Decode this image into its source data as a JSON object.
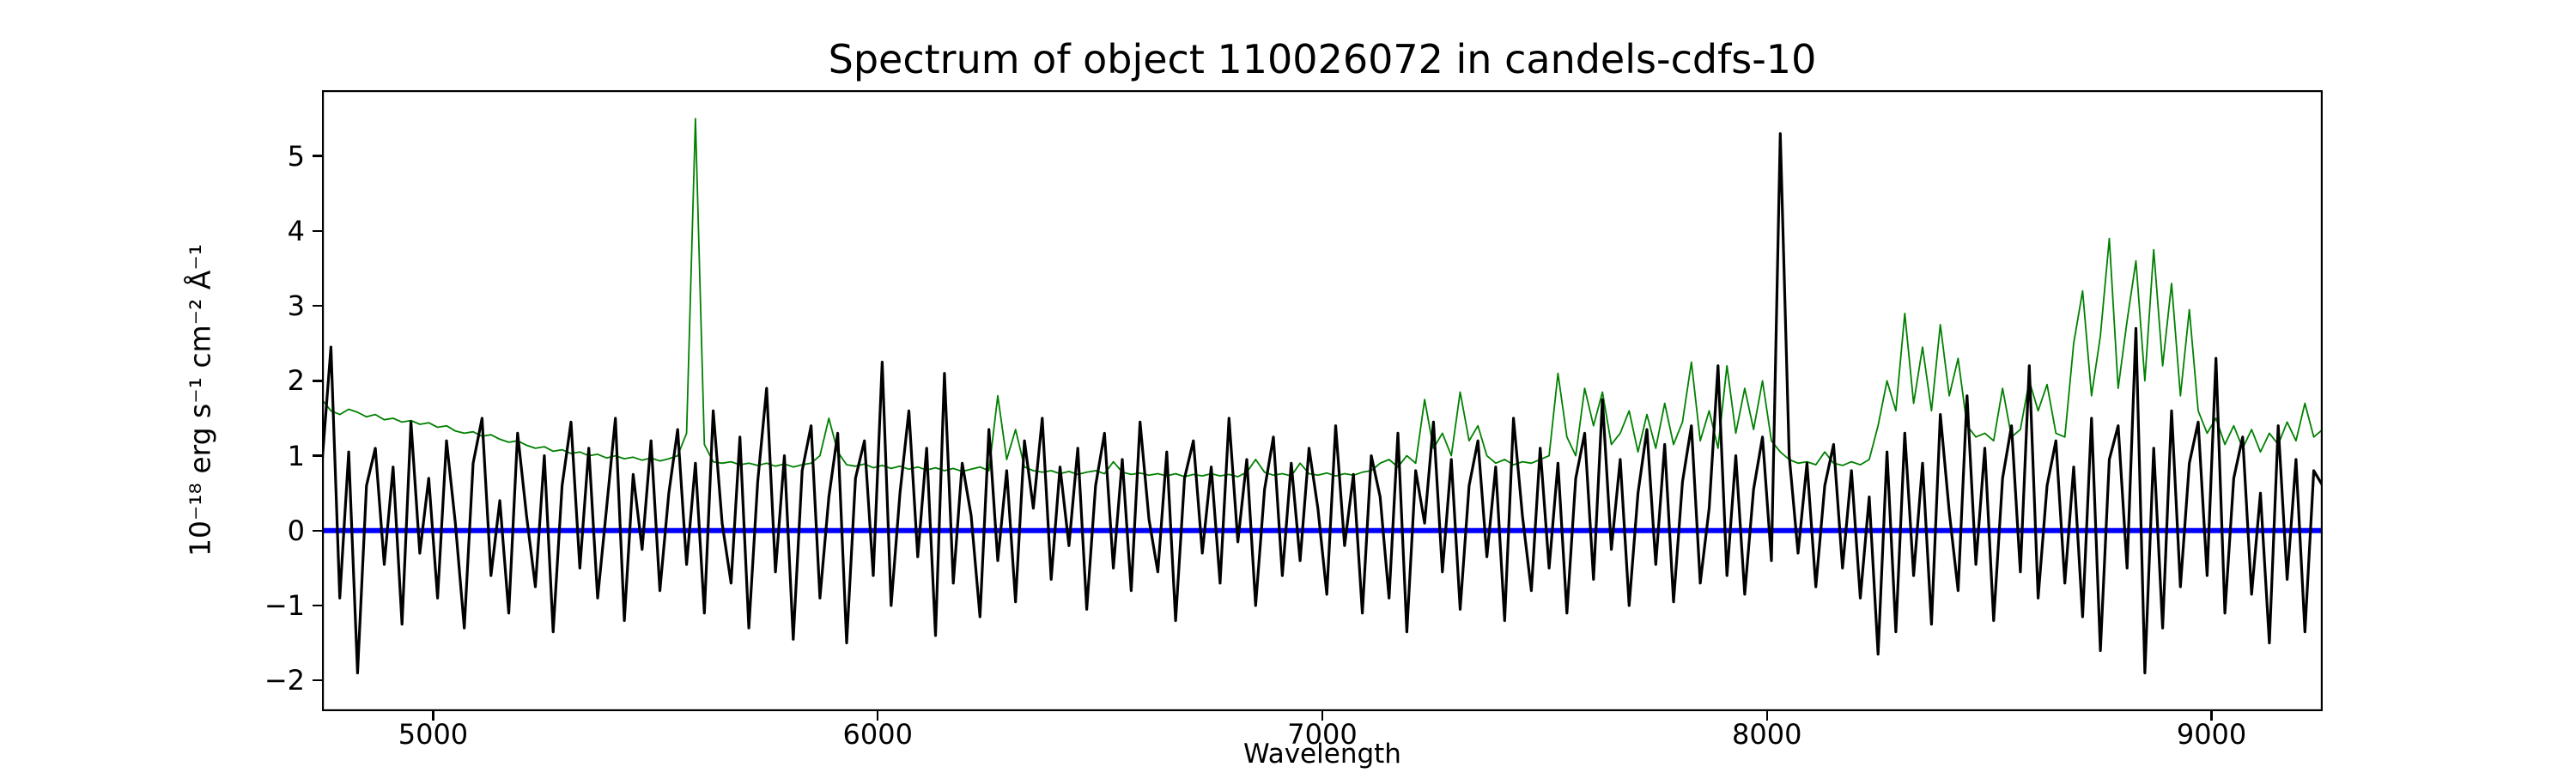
{
  "chart_data": {
    "type": "line",
    "title": "Spectrum of object 110026072 in candels-cdfs-10",
    "xlabel": "Wavelength",
    "ylabel": "10⁻¹⁸ erg s⁻¹ cm⁻² Å⁻¹",
    "xlim": [
      4750,
      9250
    ],
    "ylim": [
      -2.41,
      5.88
    ],
    "xticks": [
      5000,
      6000,
      7000,
      8000,
      9000
    ],
    "yticks": [
      -2,
      -1,
      0,
      1,
      2,
      3,
      4,
      5
    ],
    "grid": false,
    "legend": "none",
    "background": "#ffffff",
    "x_start": 4750,
    "x_step": 20,
    "series": [
      {
        "name": "object flux spectrum",
        "color": "#000000",
        "linewidth": 3.2,
        "values": [
          0.9,
          2.45,
          -0.9,
          1.05,
          -1.9,
          0.6,
          1.1,
          -0.45,
          0.85,
          -1.25,
          1.45,
          -0.3,
          0.7,
          -0.9,
          1.2,
          0.1,
          -1.3,
          0.9,
          1.5,
          -0.6,
          0.4,
          -1.1,
          1.3,
          0.2,
          -0.75,
          1.0,
          -1.35,
          0.6,
          1.45,
          -0.5,
          1.1,
          -0.9,
          0.3,
          1.5,
          -1.2,
          0.75,
          -0.25,
          1.2,
          -0.8,
          0.5,
          1.35,
          -0.45,
          0.9,
          -1.1,
          1.6,
          0.1,
          -0.7,
          1.25,
          -1.3,
          0.65,
          1.9,
          -0.55,
          1.0,
          -1.45,
          0.8,
          1.4,
          -0.9,
          0.45,
          1.3,
          -1.5,
          0.7,
          1.2,
          -0.6,
          2.25,
          -1.0,
          0.5,
          1.6,
          -0.35,
          1.1,
          -1.4,
          2.1,
          -0.7,
          0.9,
          0.2,
          -1.15,
          1.35,
          -0.4,
          0.8,
          -0.95,
          1.2,
          0.3,
          1.5,
          -0.65,
          0.85,
          -0.2,
          1.1,
          -1.05,
          0.6,
          1.3,
          -0.5,
          0.95,
          -0.8,
          1.45,
          0.15,
          -0.55,
          1.05,
          -1.2,
          0.7,
          1.2,
          -0.3,
          0.85,
          -0.7,
          1.5,
          -0.15,
          0.95,
          -1.0,
          0.55,
          1.25,
          -0.6,
          0.9,
          -0.4,
          1.1,
          0.3,
          -0.85,
          1.4,
          -0.2,
          0.75,
          -1.1,
          1.0,
          0.45,
          -0.9,
          1.3,
          -1.35,
          0.8,
          0.1,
          1.45,
          -0.55,
          0.95,
          -1.05,
          0.6,
          1.2,
          -0.35,
          0.85,
          -1.2,
          1.5,
          0.2,
          -0.8,
          1.1,
          -0.5,
          0.9,
          -1.1,
          0.7,
          1.3,
          -0.65,
          1.75,
          -0.25,
          0.95,
          -1.0,
          0.5,
          1.35,
          -0.45,
          1.15,
          -0.95,
          0.65,
          1.4,
          -0.7,
          0.3,
          2.2,
          -0.6,
          1.0,
          -0.85,
          0.55,
          1.25,
          -0.4,
          5.3,
          1.0,
          -0.3,
          0.9,
          -0.75,
          0.6,
          1.15,
          -0.5,
          0.8,
          -0.9,
          0.45,
          -1.65,
          1.05,
          -1.35,
          1.3,
          -0.6,
          0.9,
          -1.25,
          1.55,
          0.25,
          -0.8,
          1.8,
          -0.45,
          1.1,
          -1.2,
          0.7,
          1.4,
          -0.55,
          2.2,
          -0.9,
          0.6,
          1.2,
          -0.7,
          0.85,
          -1.15,
          1.5,
          -1.6,
          0.95,
          1.4,
          -0.5,
          2.7,
          -1.9,
          1.1,
          -1.3,
          1.6,
          -0.75,
          0.9,
          1.45,
          -0.6,
          2.3,
          -1.1,
          0.7,
          1.25,
          -0.85,
          0.5,
          -1.5,
          1.4,
          -0.65,
          0.95,
          -1.35,
          0.8,
          0.6
        ]
      },
      {
        "name": "noise / sky spectrum",
        "color": "#008000",
        "linewidth": 1.8,
        "values": [
          1.75,
          1.6,
          1.55,
          1.62,
          1.58,
          1.52,
          1.55,
          1.48,
          1.5,
          1.45,
          1.47,
          1.42,
          1.44,
          1.38,
          1.4,
          1.33,
          1.3,
          1.32,
          1.26,
          1.28,
          1.22,
          1.18,
          1.2,
          1.14,
          1.1,
          1.12,
          1.06,
          1.08,
          1.03,
          1.05,
          1.0,
          1.02,
          0.97,
          1.0,
          0.96,
          0.98,
          0.94,
          0.97,
          0.93,
          0.96,
          1.0,
          1.3,
          5.5,
          1.15,
          0.92,
          0.9,
          0.92,
          0.88,
          0.9,
          0.87,
          0.9,
          0.86,
          0.89,
          0.85,
          0.88,
          0.9,
          1.0,
          1.5,
          1.05,
          0.88,
          0.86,
          0.89,
          0.84,
          0.87,
          0.83,
          0.86,
          0.82,
          0.85,
          0.81,
          0.84,
          0.8,
          0.83,
          0.79,
          0.82,
          0.85,
          0.8,
          1.8,
          0.95,
          1.35,
          0.85,
          0.8,
          0.78,
          0.8,
          0.76,
          0.79,
          0.75,
          0.78,
          0.8,
          0.76,
          0.92,
          0.78,
          0.75,
          0.77,
          0.74,
          0.76,
          0.73,
          0.76,
          0.72,
          0.75,
          0.73,
          0.76,
          0.73,
          0.75,
          0.72,
          0.78,
          0.95,
          0.78,
          0.74,
          0.76,
          0.73,
          0.9,
          0.76,
          0.74,
          0.77,
          0.73,
          0.76,
          0.74,
          0.78,
          0.8,
          0.9,
          0.95,
          0.85,
          1.0,
          0.9,
          1.75,
          1.1,
          1.3,
          1.0,
          1.85,
          1.2,
          1.4,
          1.0,
          0.9,
          0.95,
          0.88,
          0.92,
          0.9,
          0.95,
          1.0,
          2.1,
          1.25,
          1.0,
          1.9,
          1.4,
          1.85,
          1.15,
          1.3,
          1.6,
          1.05,
          1.55,
          1.1,
          1.7,
          1.15,
          1.45,
          2.25,
          1.2,
          1.6,
          1.1,
          2.2,
          1.3,
          1.9,
          1.35,
          2.0,
          1.2,
          1.05,
          0.95,
          0.9,
          0.92,
          0.88,
          1.05,
          0.9,
          0.87,
          0.92,
          0.88,
          0.95,
          1.4,
          2.0,
          1.6,
          2.9,
          1.7,
          2.45,
          1.6,
          2.75,
          1.8,
          2.3,
          1.4,
          1.25,
          1.3,
          1.2,
          1.9,
          1.25,
          1.35,
          2.0,
          1.6,
          1.95,
          1.3,
          1.25,
          2.5,
          3.2,
          1.8,
          2.6,
          3.9,
          1.9,
          2.8,
          3.6,
          2.0,
          3.75,
          2.2,
          3.3,
          1.8,
          2.95,
          1.6,
          1.3,
          1.5,
          1.15,
          1.4,
          1.1,
          1.35,
          1.05,
          1.3,
          1.15,
          1.45,
          1.2,
          1.7,
          1.25,
          1.35
        ]
      },
      {
        "name": "zero flux reference line",
        "color": "#0000ff",
        "linewidth": 6,
        "flat_value": 0
      }
    ]
  }
}
